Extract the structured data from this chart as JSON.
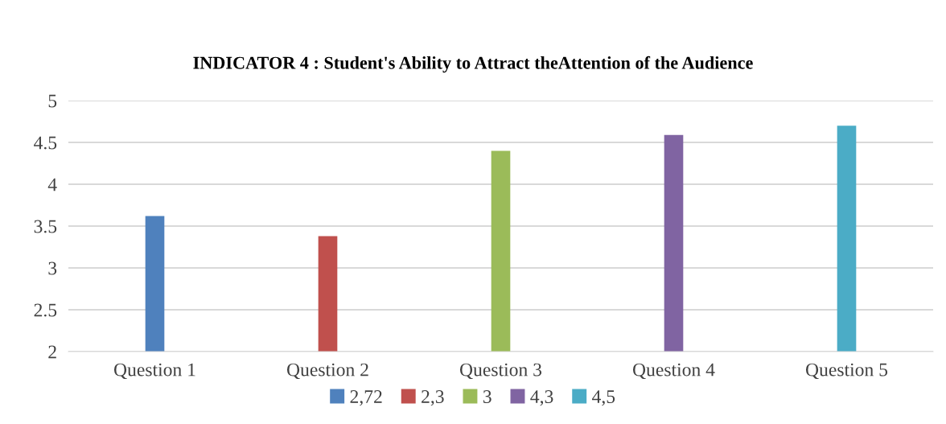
{
  "chart_data": {
    "type": "bar",
    "title": "INDICATOR 4 : Student's Ability to Attract theAttention of the Audience",
    "categories": [
      "Question 1",
      "Question 2",
      "Question 3",
      "Question 4",
      "Question 5"
    ],
    "series": [
      {
        "name": "2,72",
        "color": "#4f81bd",
        "values": [
          3.62,
          null,
          null,
          null,
          null
        ]
      },
      {
        "name": "2,3",
        "color": "#c0504d",
        "values": [
          null,
          3.38,
          null,
          null,
          null
        ]
      },
      {
        "name": "3",
        "color": "#9bbb59",
        "values": [
          null,
          null,
          4.4,
          null,
          null
        ]
      },
      {
        "name": "4,3",
        "color": "#8064a2",
        "values": [
          null,
          null,
          null,
          4.59,
          null
        ]
      },
      {
        "name": "4,5",
        "color": "#4bacc6",
        "values": [
          null,
          null,
          null,
          null,
          4.7
        ]
      }
    ],
    "ylim": [
      2,
      5
    ],
    "yticks": [
      2,
      2.5,
      3,
      3.5,
      4,
      4.5,
      5
    ],
    "grid": "y",
    "legend": "bottom"
  }
}
